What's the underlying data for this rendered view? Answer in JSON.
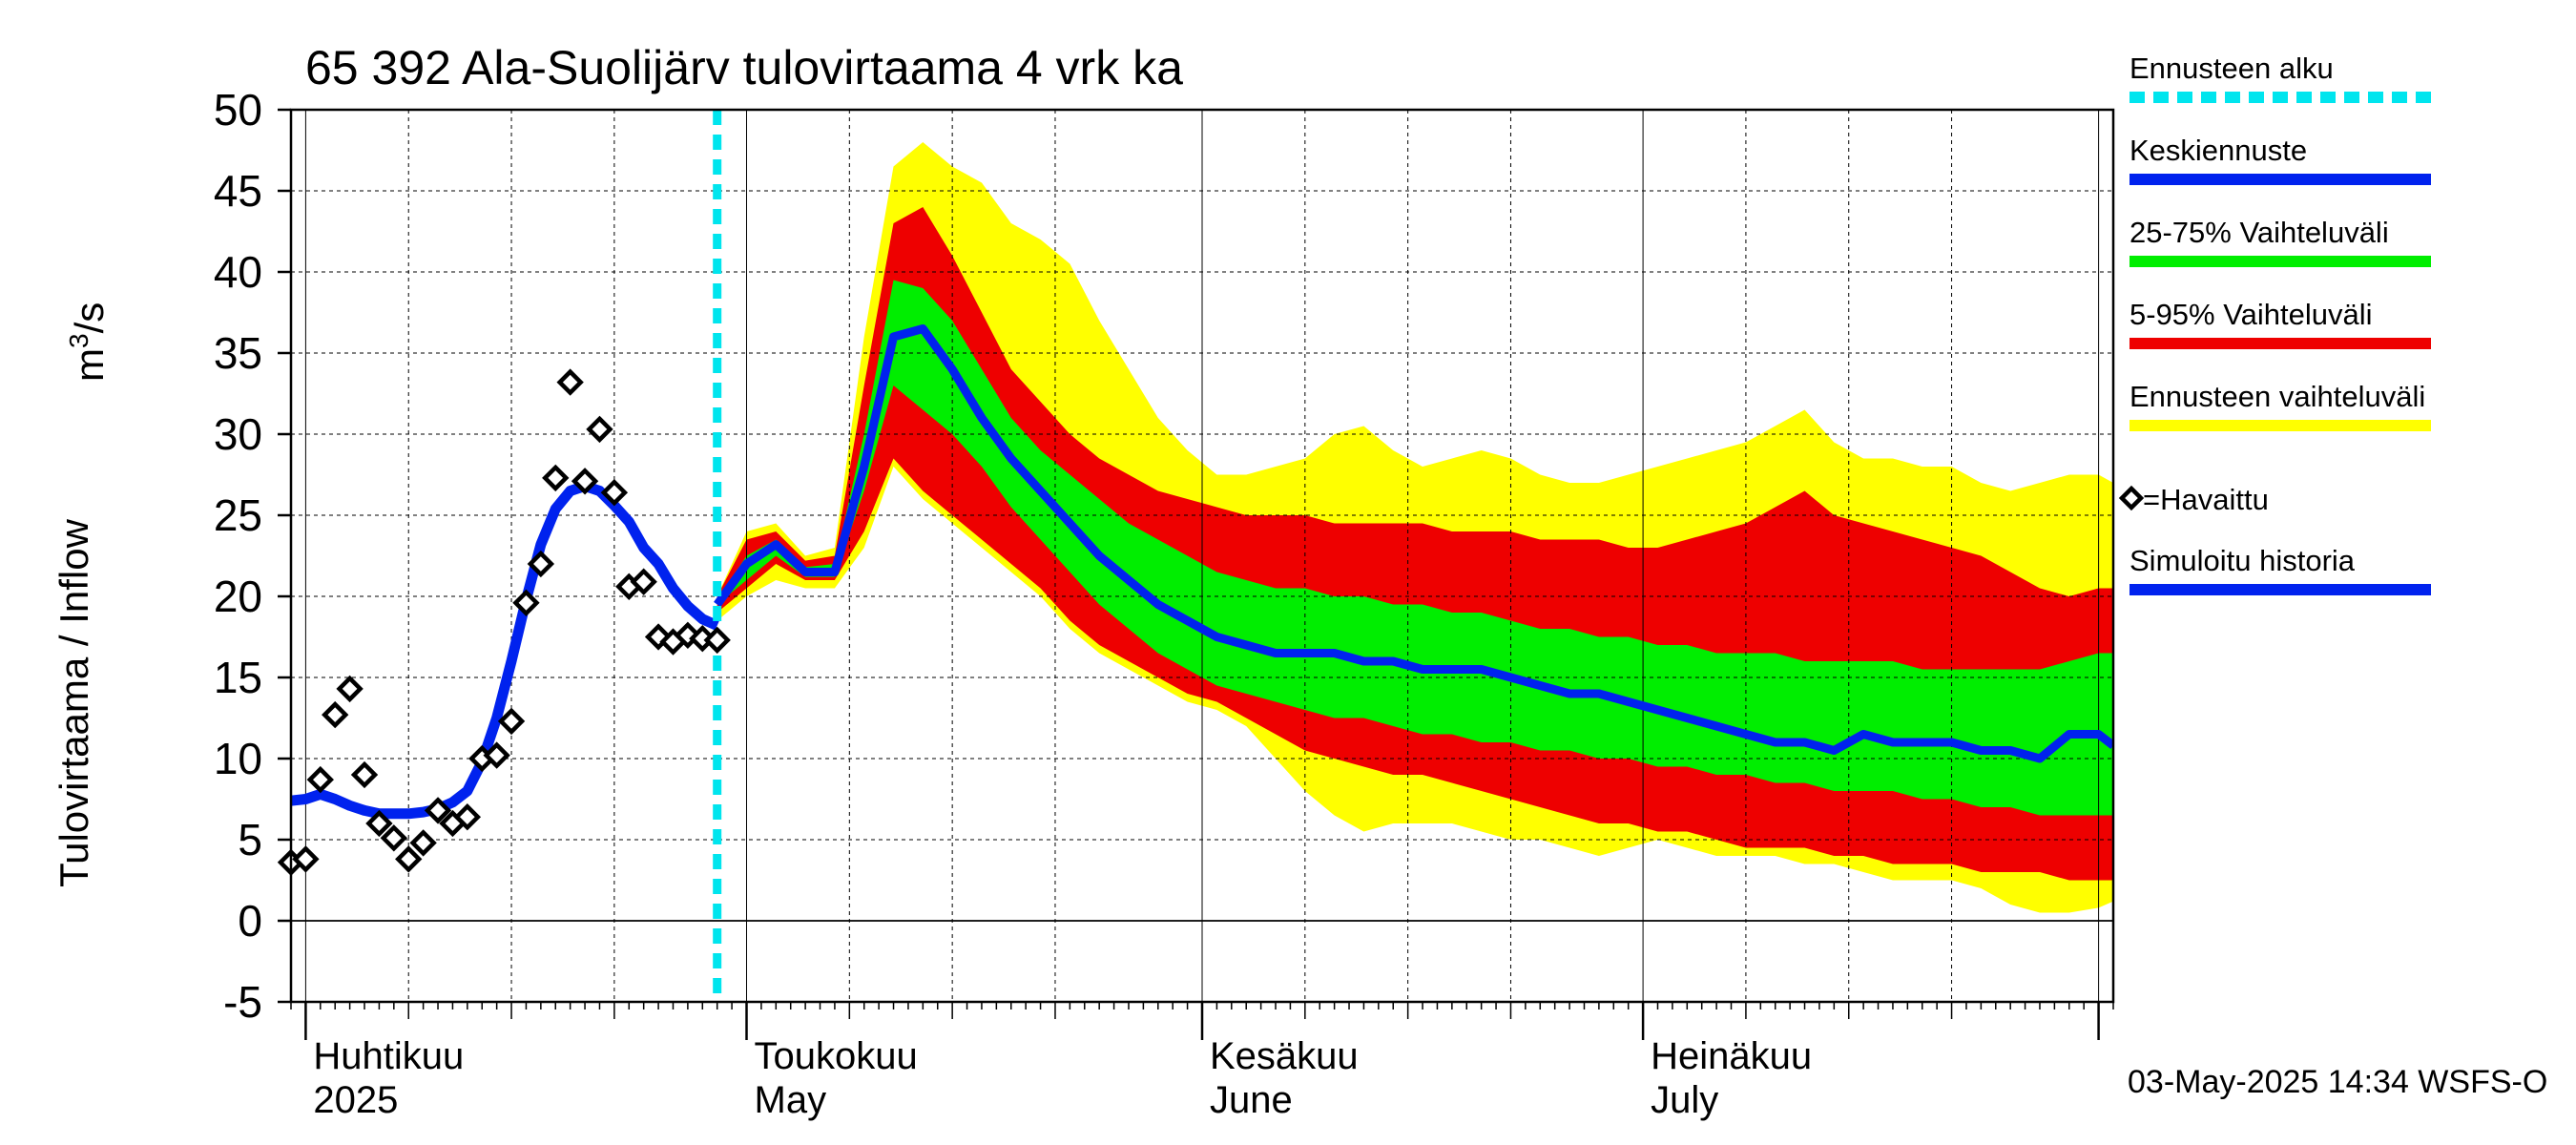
{
  "chart_data": {
    "type": "area",
    "title": "65 392 Ala-Suolijärv tulovirtaama 4 vrk ka",
    "ylabel": "Tulovirtaama / Inflow",
    "yunit_prefix": "m",
    "yunit_exp": "3",
    "yunit_suffix": "/s",
    "ylim": [
      -5,
      50
    ],
    "yticks": [
      -5,
      0,
      5,
      10,
      15,
      20,
      25,
      30,
      35,
      40,
      45,
      50
    ],
    "xlim": [
      "2025-03-31",
      "2025-08-02"
    ],
    "grid": true,
    "month_labels": [
      {
        "date": "2025-04-01",
        "line1": "Huhtikuu",
        "line2": "2025"
      },
      {
        "date": "2025-05-01",
        "line1": "Toukokuu",
        "line2": "May"
      },
      {
        "date": "2025-06-01",
        "line1": "Kesäkuu",
        "line2": "June"
      },
      {
        "date": "2025-07-01",
        "line1": "Heinäkuu",
        "line2": "July"
      }
    ],
    "forecast_start": "2025-04-29",
    "timestamp": "03-May-2025 14:34 WSFS-O",
    "legend_position": "right",
    "legend": [
      {
        "label": "Ennusteen alku",
        "color": "#00e5ee",
        "style": "dashed"
      },
      {
        "label": "Keskiennuste",
        "color": "#0022ee",
        "style": "line"
      },
      {
        "label": "25-75% Vaihteluväli",
        "color": "#00ee00",
        "style": "line"
      },
      {
        "label": "5-95% Vaihteluväli",
        "color": "#ee0000",
        "style": "line"
      },
      {
        "label": "Ennusteen vaihteluväli",
        "color": "#ffff00",
        "style": "line"
      },
      {
        "label": "=Havaittu",
        "color": "#000000",
        "style": "diamond"
      },
      {
        "label": "Simuloitu historia",
        "color": "#0022ee",
        "style": "line"
      }
    ],
    "colors": {
      "yellow": "#ffff00",
      "red": "#ee0000",
      "green": "#00ee00",
      "blue": "#0022ee",
      "cyan": "#00e5ee",
      "grid": "#000000"
    },
    "observed": [
      {
        "x": "2025-03-31",
        "y": 3.6
      },
      {
        "x": "2025-04-01",
        "y": 3.8
      },
      {
        "x": "2025-04-02",
        "y": 8.7
      },
      {
        "x": "2025-04-03",
        "y": 12.7
      },
      {
        "x": "2025-04-04",
        "y": 14.3
      },
      {
        "x": "2025-04-05",
        "y": 9.0
      },
      {
        "x": "2025-04-06",
        "y": 6.0
      },
      {
        "x": "2025-04-07",
        "y": 5.1
      },
      {
        "x": "2025-04-08",
        "y": 3.8
      },
      {
        "x": "2025-04-09",
        "y": 4.8
      },
      {
        "x": "2025-04-10",
        "y": 6.8
      },
      {
        "x": "2025-04-11",
        "y": 6.0
      },
      {
        "x": "2025-04-12",
        "y": 6.4
      },
      {
        "x": "2025-04-13",
        "y": 10.0
      },
      {
        "x": "2025-04-14",
        "y": 10.2
      },
      {
        "x": "2025-04-15",
        "y": 12.3
      },
      {
        "x": "2025-04-16",
        "y": 19.6
      },
      {
        "x": "2025-04-17",
        "y": 22.0
      },
      {
        "x": "2025-04-18",
        "y": 27.3
      },
      {
        "x": "2025-04-19",
        "y": 33.2
      },
      {
        "x": "2025-04-20",
        "y": 27.1
      },
      {
        "x": "2025-04-21",
        "y": 30.3
      },
      {
        "x": "2025-04-22",
        "y": 26.4
      },
      {
        "x": "2025-04-23",
        "y": 20.6
      },
      {
        "x": "2025-04-24",
        "y": 20.9
      },
      {
        "x": "2025-04-25",
        "y": 17.5
      },
      {
        "x": "2025-04-26",
        "y": 17.2
      },
      {
        "x": "2025-04-27",
        "y": 17.6
      },
      {
        "x": "2025-04-28",
        "y": 17.4
      },
      {
        "x": "2025-04-29",
        "y": 17.3
      }
    ],
    "simulated": [
      {
        "x": "2025-03-31",
        "y": 7.4
      },
      {
        "x": "2025-04-01",
        "y": 7.5
      },
      {
        "x": "2025-04-02",
        "y": 7.8
      },
      {
        "x": "2025-04-03",
        "y": 7.5
      },
      {
        "x": "2025-04-04",
        "y": 7.1
      },
      {
        "x": "2025-04-05",
        "y": 6.8
      },
      {
        "x": "2025-04-06",
        "y": 6.6
      },
      {
        "x": "2025-04-07",
        "y": 6.6
      },
      {
        "x": "2025-04-08",
        "y": 6.6
      },
      {
        "x": "2025-04-09",
        "y": 6.7
      },
      {
        "x": "2025-04-10",
        "y": 6.9
      },
      {
        "x": "2025-04-11",
        "y": 7.3
      },
      {
        "x": "2025-04-12",
        "y": 8.0
      },
      {
        "x": "2025-04-13",
        "y": 9.8
      },
      {
        "x": "2025-04-14",
        "y": 12.5
      },
      {
        "x": "2025-04-15",
        "y": 16.0
      },
      {
        "x": "2025-04-16",
        "y": 19.8
      },
      {
        "x": "2025-04-17",
        "y": 23.2
      },
      {
        "x": "2025-04-18",
        "y": 25.4
      },
      {
        "x": "2025-04-19",
        "y": 26.5
      },
      {
        "x": "2025-04-20",
        "y": 26.8
      },
      {
        "x": "2025-04-21",
        "y": 26.5
      },
      {
        "x": "2025-04-22",
        "y": 25.6
      },
      {
        "x": "2025-04-23",
        "y": 24.6
      },
      {
        "x": "2025-04-24",
        "y": 23.0
      },
      {
        "x": "2025-04-25",
        "y": 22.0
      },
      {
        "x": "2025-04-26",
        "y": 20.5
      },
      {
        "x": "2025-04-27",
        "y": 19.4
      },
      {
        "x": "2025-04-28",
        "y": 18.6
      },
      {
        "x": "2025-04-29",
        "y": 18.2
      }
    ],
    "forecast": {
      "x": [
        "2025-04-29",
        "2025-05-01",
        "2025-05-03",
        "2025-05-05",
        "2025-05-07",
        "2025-05-09",
        "2025-05-11",
        "2025-05-13",
        "2025-05-15",
        "2025-05-17",
        "2025-05-19",
        "2025-05-21",
        "2025-05-23",
        "2025-05-25",
        "2025-05-27",
        "2025-05-29",
        "2025-05-31",
        "2025-06-02",
        "2025-06-04",
        "2025-06-06",
        "2025-06-08",
        "2025-06-10",
        "2025-06-12",
        "2025-06-14",
        "2025-06-16",
        "2025-06-18",
        "2025-06-20",
        "2025-06-22",
        "2025-06-24",
        "2025-06-26",
        "2025-06-28",
        "2025-06-30",
        "2025-07-02",
        "2025-07-04",
        "2025-07-06",
        "2025-07-08",
        "2025-07-10",
        "2025-07-12",
        "2025-07-14",
        "2025-07-16",
        "2025-07-18",
        "2025-07-20",
        "2025-07-22",
        "2025-07-24",
        "2025-07-26",
        "2025-07-28",
        "2025-07-30",
        "2025-08-01",
        "2025-08-02"
      ],
      "min": [
        18.5,
        20.0,
        21.0,
        20.5,
        20.5,
        23.0,
        28.0,
        26.0,
        24.5,
        23.0,
        21.5,
        20.0,
        18.0,
        16.5,
        15.5,
        14.5,
        13.5,
        13.0,
        12.0,
        10.0,
        8.0,
        6.5,
        5.5,
        6.0,
        6.0,
        6.0,
        5.5,
        5.0,
        5.0,
        4.5,
        4.0,
        4.5,
        5.0,
        4.5,
        4.0,
        4.0,
        4.0,
        3.5,
        3.5,
        3.0,
        2.5,
        2.5,
        2.5,
        2.0,
        1.0,
        0.5,
        0.5,
        0.8,
        1.2
      ],
      "p5": [
        19.0,
        20.5,
        22.0,
        21.0,
        21.0,
        24.0,
        28.5,
        26.5,
        25.0,
        23.5,
        22.0,
        20.5,
        18.5,
        17.0,
        16.0,
        15.0,
        14.0,
        13.5,
        12.5,
        11.5,
        10.5,
        10.0,
        9.5,
        9.0,
        9.0,
        8.5,
        8.0,
        7.5,
        7.0,
        6.5,
        6.0,
        6.0,
        5.5,
        5.5,
        5.0,
        4.5,
        4.5,
        4.5,
        4.0,
        4.0,
        3.5,
        3.5,
        3.5,
        3.0,
        3.0,
        3.0,
        2.5,
        2.5,
        2.5
      ],
      "p25": [
        19.5,
        21.0,
        22.5,
        21.2,
        21.2,
        26.5,
        33.0,
        31.5,
        30.0,
        28.0,
        25.5,
        23.5,
        21.5,
        19.5,
        18.0,
        16.5,
        15.5,
        14.5,
        14.0,
        13.5,
        13.0,
        12.5,
        12.5,
        12.0,
        11.5,
        11.5,
        11.0,
        11.0,
        10.5,
        10.5,
        10.0,
        10.0,
        9.5,
        9.5,
        9.0,
        9.0,
        8.5,
        8.5,
        8.0,
        8.0,
        8.0,
        7.5,
        7.5,
        7.0,
        7.0,
        6.5,
        6.5,
        6.5,
        6.5
      ],
      "median": [
        19.5,
        22.0,
        23.2,
        21.5,
        21.5,
        28.0,
        36.0,
        36.5,
        34.0,
        31.0,
        28.5,
        26.5,
        24.5,
        22.5,
        21.0,
        19.5,
        18.5,
        17.5,
        17.0,
        16.5,
        16.5,
        16.5,
        16.0,
        16.0,
        15.5,
        15.5,
        15.5,
        15.0,
        14.5,
        14.0,
        14.0,
        13.5,
        13.0,
        12.5,
        12.0,
        11.5,
        11.0,
        11.0,
        10.5,
        11.5,
        11.0,
        11.0,
        11.0,
        10.5,
        10.5,
        10.0,
        11.5,
        11.5,
        10.8
      ],
      "p75": [
        19.8,
        22.5,
        23.5,
        21.8,
        22.0,
        30.0,
        39.5,
        39.0,
        37.0,
        34.0,
        31.0,
        29.0,
        27.5,
        26.0,
        24.5,
        23.5,
        22.5,
        21.5,
        21.0,
        20.5,
        20.5,
        20.0,
        20.0,
        19.5,
        19.5,
        19.0,
        19.0,
        18.5,
        18.0,
        18.0,
        17.5,
        17.5,
        17.0,
        17.0,
        16.5,
        16.5,
        16.5,
        16.0,
        16.0,
        16.0,
        16.0,
        15.5,
        15.5,
        15.5,
        15.5,
        15.5,
        16.0,
        16.5,
        16.5
      ],
      "p95": [
        20.0,
        23.5,
        24.0,
        22.2,
        22.5,
        33.0,
        43.0,
        44.0,
        41.0,
        37.5,
        34.0,
        32.0,
        30.0,
        28.5,
        27.5,
        26.5,
        26.0,
        25.5,
        25.0,
        25.0,
        25.0,
        24.5,
        24.5,
        24.5,
        24.5,
        24.0,
        24.0,
        24.0,
        23.5,
        23.5,
        23.5,
        23.0,
        23.0,
        23.5,
        24.0,
        24.5,
        25.5,
        26.5,
        25.0,
        24.5,
        24.0,
        23.5,
        23.0,
        22.5,
        21.5,
        20.5,
        20.0,
        20.5,
        20.5
      ],
      "max": [
        20.0,
        24.0,
        24.5,
        22.5,
        23.0,
        36.0,
        46.5,
        48.0,
        46.5,
        45.5,
        43.0,
        42.0,
        40.5,
        37.0,
        34.0,
        31.0,
        29.0,
        27.5,
        27.5,
        28.0,
        28.5,
        30.0,
        30.5,
        29.0,
        28.0,
        28.5,
        29.0,
        28.5,
        27.5,
        27.0,
        27.0,
        27.5,
        28.0,
        28.5,
        29.0,
        29.5,
        30.5,
        31.5,
        29.5,
        28.5,
        28.5,
        28.0,
        28.0,
        27.0,
        26.5,
        27.0,
        27.5,
        27.5,
        27.0
      ]
    }
  }
}
